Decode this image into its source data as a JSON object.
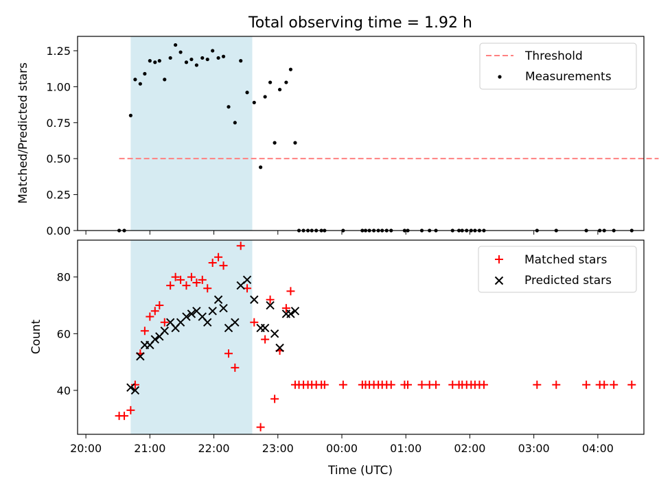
{
  "figure": {
    "title": "Total observing time = 1.92 h",
    "xlabel": "Time (UTC)",
    "colors": {
      "shade": "#add8e6",
      "threshold": "#ff8080",
      "measurement": "#000000",
      "matched": "#ff0000",
      "predicted": "#000000"
    }
  },
  "chart_data": [
    {
      "type": "scatter",
      "name": "ratio",
      "ylabel": "Matched/Predicted stars",
      "ylim": [
        0,
        1.35
      ],
      "yticks": [
        0,
        0.25,
        0.5,
        0.75,
        1.0,
        1.25
      ],
      "ytick_labels": [
        "0.00",
        "0.25",
        "0.50",
        "0.75",
        "1.00",
        "1.25"
      ],
      "shaded_span": [
        20.7,
        22.6
      ],
      "threshold": {
        "label": "Threshold",
        "y": 0.5,
        "x_range": [
          20.52,
          28.95
        ]
      },
      "legend": [
        "Threshold",
        "Measurements"
      ],
      "legend_loc": "upper right",
      "measurements": {
        "label": "Measurements",
        "x": [
          20.52,
          20.6,
          20.7,
          20.77,
          20.85,
          20.92,
          21.0,
          21.08,
          21.15,
          21.23,
          21.32,
          21.4,
          21.48,
          21.57,
          21.65,
          21.73,
          21.82,
          21.9,
          21.98,
          22.07,
          22.15,
          22.23,
          22.33,
          22.42,
          22.52,
          22.63,
          22.73,
          22.8,
          22.88,
          22.95,
          23.03,
          23.13,
          23.2,
          23.27,
          23.33,
          23.4,
          23.47,
          23.53,
          23.6,
          23.68,
          23.73,
          24.02,
          24.32,
          24.37,
          24.43,
          24.5,
          24.57,
          24.63,
          24.7,
          24.77,
          24.98,
          25.03,
          25.25,
          25.37,
          25.47,
          25.73,
          25.83,
          25.88,
          25.95,
          26.02,
          26.08,
          26.15,
          26.22,
          27.05,
          27.35,
          27.82,
          28.03,
          28.1,
          28.25,
          28.53
        ],
        "y": [
          0.0,
          0.0,
          0.8,
          1.05,
          1.02,
          1.09,
          1.18,
          1.17,
          1.18,
          1.05,
          1.2,
          1.29,
          1.24,
          1.17,
          1.19,
          1.15,
          1.2,
          1.19,
          1.25,
          1.2,
          1.21,
          0.86,
          0.75,
          1.18,
          0.96,
          0.89,
          0.44,
          0.93,
          1.03,
          0.61,
          0.98,
          1.03,
          1.12,
          0.61,
          0,
          0,
          0,
          0,
          0,
          0,
          0,
          0,
          0,
          0,
          0,
          0,
          0,
          0,
          0,
          0,
          0,
          0,
          0,
          0,
          0,
          0,
          0,
          0,
          0,
          0,
          0,
          0,
          0,
          0,
          0,
          0,
          0,
          0,
          0,
          0
        ]
      }
    },
    {
      "type": "scatter",
      "name": "counts",
      "ylabel": "Count",
      "ylim": [
        24.5,
        93
      ],
      "yticks": [
        40,
        60,
        80
      ],
      "ytick_labels": [
        "40",
        "60",
        "80"
      ],
      "shaded_span": [
        20.7,
        22.6
      ],
      "legend": [
        "Matched stars",
        "Predicted stars"
      ],
      "legend_loc": "upper right",
      "xticks": [
        20,
        21,
        22,
        23,
        24,
        25,
        26,
        27,
        28
      ],
      "xtick_labels": [
        "20:00",
        "21:00",
        "22:00",
        "23:00",
        "00:00",
        "01:00",
        "02:00",
        "03:00",
        "04:00"
      ],
      "xlim": [
        19.87,
        28.72
      ],
      "series": [
        {
          "name": "Matched stars",
          "marker": "plus",
          "x": [
            20.52,
            20.6,
            20.7,
            20.77,
            20.85,
            20.92,
            21.0,
            21.08,
            21.15,
            21.23,
            21.32,
            21.4,
            21.48,
            21.57,
            21.65,
            21.73,
            21.82,
            21.9,
            21.98,
            22.07,
            22.15,
            22.23,
            22.33,
            22.42,
            22.52,
            22.63,
            22.73,
            22.8,
            22.88,
            22.95,
            23.03,
            23.13,
            23.2,
            23.27,
            23.33,
            23.4,
            23.47,
            23.53,
            23.6,
            23.68,
            23.73,
            24.02,
            24.32,
            24.37,
            24.43,
            24.5,
            24.57,
            24.63,
            24.7,
            24.77,
            24.98,
            25.03,
            25.25,
            25.37,
            25.47,
            25.73,
            25.83,
            25.88,
            25.95,
            26.02,
            26.08,
            26.15,
            26.22,
            27.05,
            27.35,
            27.82,
            28.03,
            28.1,
            28.25,
            28.53
          ],
          "y": [
            31,
            31,
            33,
            42,
            53,
            61,
            66,
            68,
            70,
            64,
            77,
            80,
            79,
            77,
            80,
            78,
            79,
            76,
            85,
            87,
            84,
            53,
            48,
            91,
            76,
            64,
            27,
            58,
            72,
            37,
            54,
            69,
            75,
            42,
            42,
            42,
            42,
            42,
            42,
            42,
            42,
            42,
            42,
            42,
            42,
            42,
            42,
            42,
            42,
            42,
            42,
            42,
            42,
            42,
            42,
            42,
            42,
            42,
            42,
            42,
            42,
            42,
            42,
            42,
            42,
            42,
            42,
            42,
            42,
            42
          ]
        },
        {
          "name": "Predicted stars",
          "marker": "x",
          "x": [
            20.7,
            20.77,
            20.85,
            20.92,
            21.0,
            21.08,
            21.15,
            21.23,
            21.32,
            21.4,
            21.48,
            21.57,
            21.65,
            21.73,
            21.82,
            21.9,
            21.98,
            22.07,
            22.15,
            22.23,
            22.33,
            22.42,
            22.52,
            22.63,
            22.73,
            22.8,
            22.88,
            22.95,
            23.03,
            23.13,
            23.2,
            23.27
          ],
          "y": [
            41,
            40,
            52,
            56,
            56,
            58,
            59,
            61,
            64,
            62,
            64,
            66,
            67,
            68,
            66,
            64,
            68,
            72,
            69,
            62,
            64,
            77,
            79,
            72,
            62,
            62,
            70,
            60,
            55,
            67,
            67,
            68
          ]
        }
      ]
    }
  ]
}
